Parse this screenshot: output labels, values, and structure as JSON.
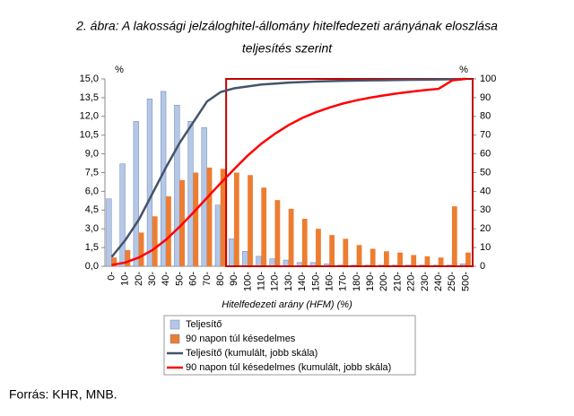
{
  "chart_data": {
    "type": "bar-line",
    "title_lines": [
      "2. ábra: A lakossági jelzáloghitel-állomány hitelfedezeti arányának eloszlása",
      "teljesítés szerint"
    ],
    "y_unit": "%",
    "y2_unit": "%",
    "x_label": "Hitelfedezeti arány (HFM) (%)",
    "source": "Forrás: KHR, MNB.",
    "categories": [
      "0-",
      "10-",
      "20-",
      "30-",
      "40-",
      "50-",
      "60-",
      "70-",
      "80-",
      "90-",
      "100-",
      "110-",
      "120-",
      "130-",
      "140-",
      "150-",
      "160-",
      "170-",
      "180-",
      "190-",
      "200-",
      "210-",
      "220-",
      "230-",
      "240-",
      "250-",
      "500-"
    ],
    "series": [
      {
        "name": "Teljesítő",
        "kind": "bar",
        "color": "#b4c7e7",
        "values": [
          5.4,
          8.2,
          11.6,
          13.4,
          14.0,
          12.9,
          11.6,
          11.1,
          4.9,
          2.2,
          1.2,
          0.8,
          0.6,
          0.5,
          0.3,
          0.3,
          0.2,
          0.1,
          0.1,
          0.1,
          0.1,
          0.1,
          0.1,
          0.1,
          0.1,
          0.1,
          0.2
        ]
      },
      {
        "name": "90 napon túl késedelmes",
        "kind": "bar",
        "color": "#ed7d31",
        "values": [
          0.7,
          1.3,
          2.7,
          4.0,
          5.6,
          6.9,
          7.5,
          7.9,
          7.8,
          7.5,
          7.3,
          6.3,
          5.3,
          4.6,
          3.8,
          3.0,
          2.5,
          2.2,
          1.7,
          1.4,
          1.2,
          1.1,
          0.9,
          0.8,
          0.7,
          4.8,
          1.1
        ]
      },
      {
        "name": "Teljesítő (kumulált, jobb skála)",
        "kind": "line",
        "axis": "y2",
        "color": "#44546a",
        "values": [
          5,
          14,
          25,
          39,
          53,
          66,
          77,
          88,
          93,
          95,
          96,
          97,
          97.5,
          98,
          98.3,
          98.6,
          98.8,
          99,
          99.1,
          99.2,
          99.3,
          99.4,
          99.5,
          99.6,
          99.7,
          99.8,
          100
        ]
      },
      {
        "name": "90 napon túl késedelmes (kumulált, jobb skála)",
        "kind": "line",
        "axis": "y2",
        "color": "#ff0000",
        "values": [
          0.7,
          2,
          4.7,
          8.7,
          14.3,
          21.2,
          28.7,
          36.6,
          44.4,
          51.9,
          59.2,
          65.5,
          70.8,
          75.4,
          79.2,
          82.2,
          84.7,
          86.9,
          88.6,
          90,
          91.2,
          92.3,
          93.2,
          94,
          94.7,
          99.2,
          100
        ]
      }
    ],
    "ylim": [
      0,
      15
    ],
    "yticks": [
      {
        "value": 0,
        "label": "0,0"
      },
      {
        "value": 1.5,
        "label": "1,5"
      },
      {
        "value": 3,
        "label": "3,0"
      },
      {
        "value": 4.5,
        "label": "4,5"
      },
      {
        "value": 6,
        "label": "6,0"
      },
      {
        "value": 7.5,
        "label": "7,5"
      },
      {
        "value": 9,
        "label": "9,0"
      },
      {
        "value": 10.5,
        "label": "10,5"
      },
      {
        "value": 12,
        "label": "12,0"
      },
      {
        "value": 13.5,
        "label": "13,5"
      },
      {
        "value": 15,
        "label": "15,0"
      }
    ],
    "y2lim": [
      0,
      100
    ],
    "y2ticks": [
      0,
      10,
      20,
      30,
      40,
      50,
      60,
      70,
      80,
      90,
      100
    ],
    "grid": false
  }
}
